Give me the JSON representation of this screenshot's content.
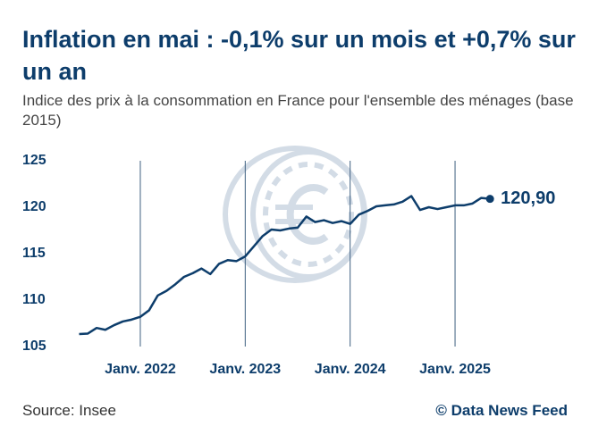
{
  "chart_data": {
    "type": "line",
    "title": "Inflation en mai : -0,1% sur un mois et +0,7% sur un an",
    "subtitle": "Indice des prix à la consommation en France pour l'ensemble des ménages (base 2015)",
    "source": "Source: Insee",
    "credit": "© Data News Feed",
    "categories": [
      null,
      null,
      null,
      null,
      null,
      null,
      null,
      "Janv. 2022",
      null,
      null,
      null,
      null,
      null,
      null,
      null,
      null,
      null,
      null,
      null,
      "Janv. 2023",
      null,
      null,
      null,
      null,
      null,
      null,
      null,
      null,
      null,
      null,
      null,
      "Janv. 2024",
      null,
      null,
      null,
      null,
      null,
      null,
      null,
      null,
      null,
      null,
      null,
      "Janv. 2025",
      null,
      null,
      null,
      null
    ],
    "series": [
      {
        "color": "#0d3d6b",
        "values": [
          106.35,
          106.4,
          107.0,
          106.8,
          107.3,
          107.7,
          107.9,
          108.2,
          108.9,
          110.5,
          111.0,
          111.7,
          112.5,
          112.9,
          113.4,
          112.8,
          113.9,
          114.3,
          114.2,
          114.7,
          115.8,
          116.9,
          117.6,
          117.5,
          117.7,
          117.8,
          119.0,
          118.4,
          118.6,
          118.3,
          118.5,
          118.2,
          119.2,
          119.6,
          120.1,
          120.2,
          120.3,
          120.6,
          121.2,
          119.7,
          120.0,
          119.8,
          120.0,
          120.2,
          120.2,
          120.4,
          121.0,
          120.9
        ],
        "value_labels": [
          null,
          null,
          null,
          null,
          null,
          null,
          null,
          null,
          null,
          null,
          null,
          null,
          null,
          null,
          null,
          null,
          null,
          null,
          null,
          null,
          null,
          null,
          null,
          null,
          null,
          null,
          null,
          null,
          null,
          null,
          null,
          null,
          null,
          null,
          null,
          null,
          null,
          null,
          null,
          null,
          null,
          null,
          null,
          null,
          null,
          null,
          null,
          "120,90"
        ]
      }
    ],
    "ylim": [
      105,
      125
    ],
    "yticks": [
      105,
      110,
      115,
      120,
      125
    ]
  }
}
